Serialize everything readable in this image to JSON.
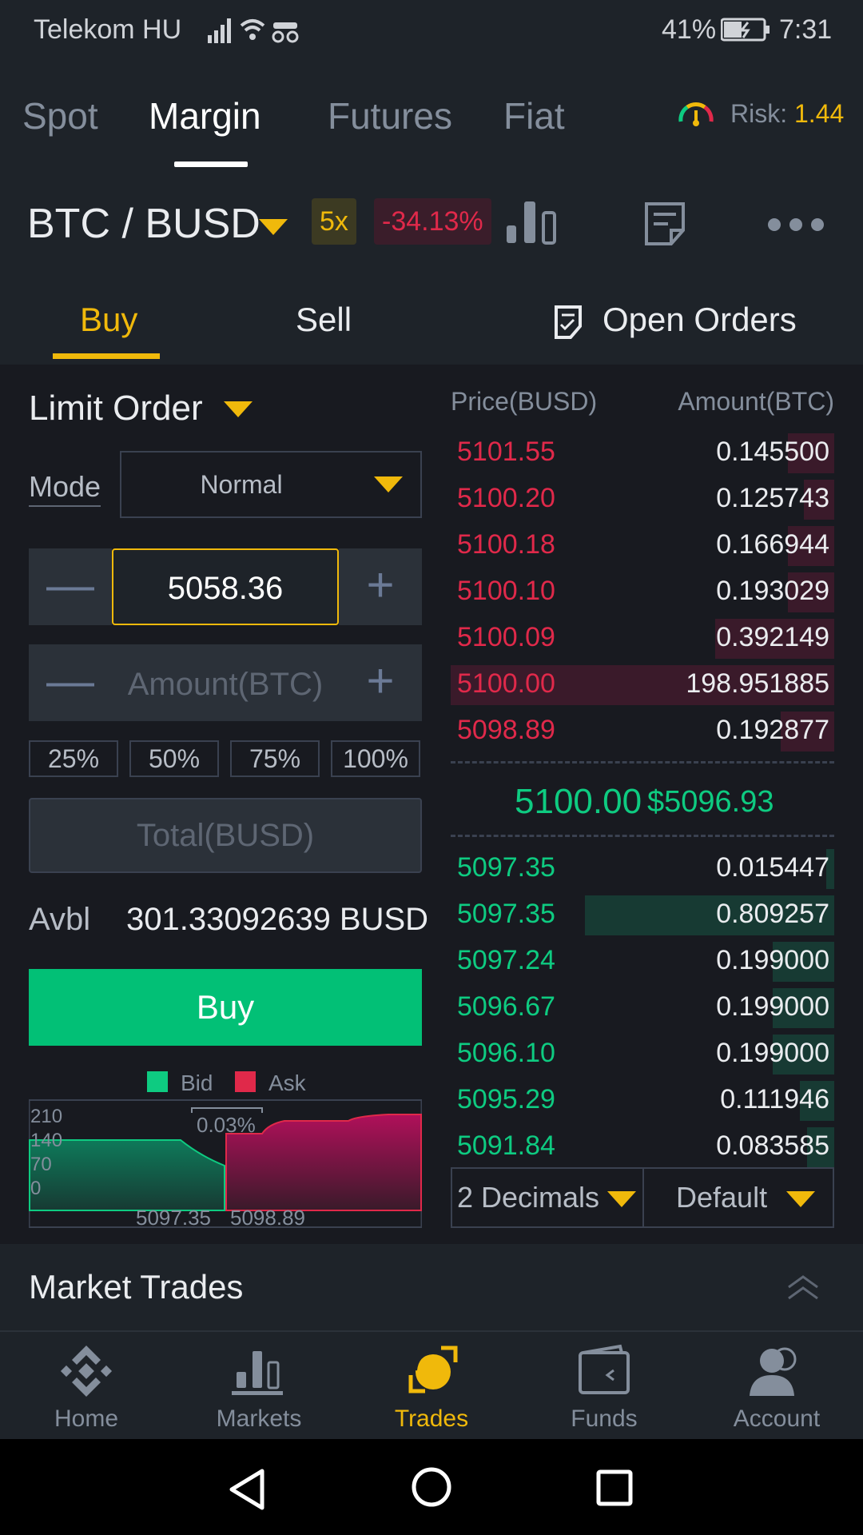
{
  "status_bar": {
    "carrier": "Telekom HU",
    "battery_pct": "41%",
    "time": "7:31"
  },
  "top_tabs": [
    "Spot",
    "Margin",
    "Futures",
    "Fiat"
  ],
  "risk": {
    "label": "Risk:",
    "value": "1.44"
  },
  "pair": {
    "name": "BTC / BUSD",
    "leverage": "5x",
    "change": "-34.13%"
  },
  "trade_tabs": {
    "buy": "Buy",
    "sell": "Sell",
    "open_orders": "Open Orders"
  },
  "order_form": {
    "order_type": "Limit Order",
    "mode_label": "Mode",
    "mode_value": "Normal",
    "price_value": "5058.36",
    "amount_placeholder": "Amount(BTC)",
    "percent_buttons": [
      "25%",
      "50%",
      "75%",
      "100%"
    ],
    "total_placeholder": "Total(BUSD)",
    "avbl_label": "Avbl",
    "avbl_value": "301.33092639 BUSD",
    "buy_label": "Buy",
    "minus": "—",
    "plus": "+"
  },
  "depth_chart": {
    "legend_bid": "Bid",
    "legend_ask": "Ask",
    "spread": "0.03%",
    "y_ticks": [
      "210",
      "140",
      "70",
      "0"
    ],
    "x_bid": "5097.35",
    "x_ask": "5098.89",
    "colors": {
      "bid": "#0ecb81",
      "ask": "#e0294a"
    }
  },
  "order_book": {
    "header_price": "Price(BUSD)",
    "header_amount": "Amount(BTC)",
    "asks": [
      {
        "price": "5101.55",
        "amount": "0.145500",
        "depth": 0.12
      },
      {
        "price": "5100.20",
        "amount": "0.125743",
        "depth": 0.08
      },
      {
        "price": "5100.18",
        "amount": "0.166944",
        "depth": 0.12
      },
      {
        "price": "5100.10",
        "amount": "0.193029",
        "depth": 0.12
      },
      {
        "price": "5100.09",
        "amount": "0.392149",
        "depth": 0.31
      },
      {
        "price": "5100.00",
        "amount": "198.951885",
        "depth": 1.0
      },
      {
        "price": "5098.89",
        "amount": "0.192877",
        "depth": 0.14
      }
    ],
    "last_price": "5100.00",
    "last_price_usd": "$5096.93",
    "bids": [
      {
        "price": "5097.35",
        "amount": "0.015447",
        "depth": 0.02
      },
      {
        "price": "5097.35",
        "amount": "0.809257",
        "depth": 0.65
      },
      {
        "price": "5097.24",
        "amount": "0.199000",
        "depth": 0.16
      },
      {
        "price": "5096.67",
        "amount": "0.199000",
        "depth": 0.16
      },
      {
        "price": "5096.10",
        "amount": "0.199000",
        "depth": 0.16
      },
      {
        "price": "5095.29",
        "amount": "0.111946",
        "depth": 0.09
      },
      {
        "price": "5091.84",
        "amount": "0.083585",
        "depth": 0.07
      }
    ],
    "decimals": "2 Decimals",
    "view": "Default"
  },
  "market_trades": {
    "title": "Market Trades"
  },
  "bottom_nav": [
    {
      "label": "Home",
      "icon": "binance-logo-icon"
    },
    {
      "label": "Markets",
      "icon": "bar-chart-icon"
    },
    {
      "label": "Trades",
      "icon": "trades-icon"
    },
    {
      "label": "Funds",
      "icon": "wallet-icon"
    },
    {
      "label": "Account",
      "icon": "person-icon"
    }
  ],
  "colors": {
    "accent": "#f0b90b",
    "buy": "#02c076",
    "bid": "#0ecb81",
    "ask": "#e0294a",
    "bg": "#181a20"
  }
}
